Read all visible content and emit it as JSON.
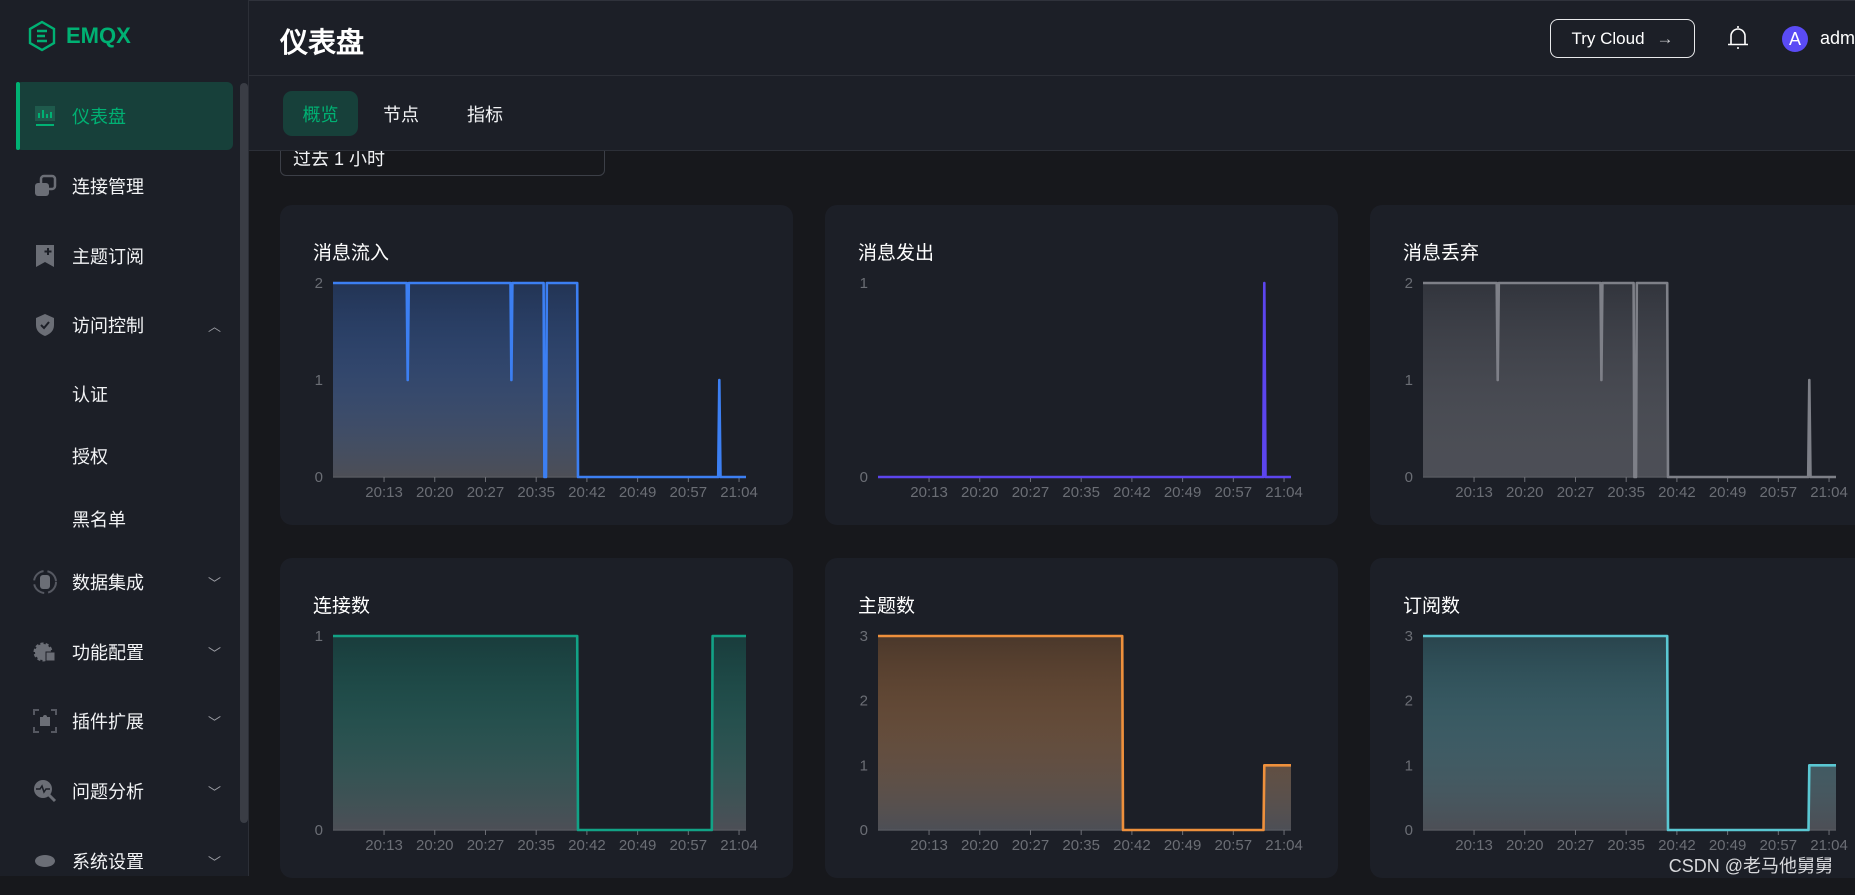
{
  "brand": {
    "name": "EMQX",
    "color": "#00b173"
  },
  "sidebar": {
    "items": [
      {
        "label": "仪表盘",
        "icon": "dashboard-icon",
        "active": true
      },
      {
        "label": "连接管理",
        "icon": "connections-icon"
      },
      {
        "label": "主题订阅",
        "icon": "bookmark-plus-icon"
      },
      {
        "label": "访问控制",
        "icon": "shield-icon",
        "expanded": true,
        "children": [
          {
            "label": "认证"
          },
          {
            "label": "授权"
          },
          {
            "label": "黑名单"
          }
        ]
      },
      {
        "label": "数据集成",
        "icon": "database-icon",
        "expanded": false
      },
      {
        "label": "功能配置",
        "icon": "gear-icon",
        "expanded": false
      },
      {
        "label": "插件扩展",
        "icon": "puzzle-icon",
        "expanded": false
      },
      {
        "label": "问题分析",
        "icon": "diagnose-icon",
        "expanded": false
      },
      {
        "label": "系统设置",
        "icon": "settings-icon",
        "expanded": false
      }
    ]
  },
  "header": {
    "title": "仪表盘",
    "try_cloud": "Try Cloud",
    "avatar_letter": "A",
    "user": "admin"
  },
  "tabs": [
    {
      "label": "概览",
      "active": true
    },
    {
      "label": "节点"
    },
    {
      "label": "指标"
    }
  ],
  "time_range": {
    "value": "过去 1 小时"
  },
  "watermark": "CSDN @老马他舅舅",
  "chart_data": [
    {
      "type": "line",
      "title": "消息流入",
      "color": "#3c7ff2",
      "ylim": [
        0,
        2
      ],
      "yticks": [
        0,
        1,
        2
      ],
      "xticks": [
        "20:13",
        "20:20",
        "20:27",
        "20:35",
        "20:42",
        "20:49",
        "20:57",
        "21:04"
      ],
      "xlim": [
        "20:05:40",
        "21:05:00"
      ],
      "points": [
        [
          "20:05:40",
          2
        ],
        [
          "20:16:15",
          2
        ],
        [
          "20:16:24",
          1
        ],
        [
          "20:16:33",
          2
        ],
        [
          "20:31:10",
          2
        ],
        [
          "20:31:18",
          1
        ],
        [
          "20:31:26",
          2
        ],
        [
          "20:35:55",
          2
        ],
        [
          "20:36:02",
          0
        ],
        [
          "20:36:16",
          0
        ],
        [
          "20:36:23",
          2
        ],
        [
          "20:40:45",
          2
        ],
        [
          "20:40:52",
          0
        ],
        [
          "21:01:00",
          0
        ],
        [
          "21:01:10",
          1
        ],
        [
          "21:01:20",
          0
        ],
        [
          "21:05:00",
          0
        ]
      ]
    },
    {
      "type": "line",
      "title": "消息发出",
      "color": "#5c45ee",
      "ylim": [
        0,
        1
      ],
      "yticks": [
        0,
        1
      ],
      "xticks": [
        "20:13",
        "20:20",
        "20:27",
        "20:35",
        "20:42",
        "20:49",
        "20:57",
        "21:04"
      ],
      "xlim": [
        "20:05:40",
        "21:05:00"
      ],
      "points": [
        [
          "20:05:40",
          0
        ],
        [
          "21:01:00",
          0
        ],
        [
          "21:01:10",
          1
        ],
        [
          "21:01:20",
          0
        ],
        [
          "21:05:00",
          0
        ]
      ]
    },
    {
      "type": "line",
      "title": "消息丢弃",
      "color": "#7e8088",
      "ylim": [
        0,
        2
      ],
      "yticks": [
        0,
        1,
        2
      ],
      "xticks": [
        "20:13",
        "20:20",
        "20:27",
        "20:35",
        "20:42",
        "20:49",
        "20:57",
        "21:04"
      ],
      "xlim": [
        "20:05:40",
        "21:05:00"
      ],
      "points": [
        [
          "20:05:40",
          2
        ],
        [
          "20:16:15",
          2
        ],
        [
          "20:16:24",
          1
        ],
        [
          "20:16:33",
          2
        ],
        [
          "20:31:10",
          2
        ],
        [
          "20:31:18",
          1
        ],
        [
          "20:31:26",
          2
        ],
        [
          "20:35:55",
          2
        ],
        [
          "20:36:02",
          0
        ],
        [
          "20:36:16",
          0
        ],
        [
          "20:36:23",
          2
        ],
        [
          "20:40:45",
          2
        ],
        [
          "20:40:52",
          0
        ],
        [
          "21:01:00",
          0
        ],
        [
          "21:01:10",
          1
        ],
        [
          "21:01:20",
          0
        ],
        [
          "21:05:00",
          0
        ]
      ]
    },
    {
      "type": "line",
      "title": "连接数",
      "color": "#12a286",
      "ylim": [
        0,
        1
      ],
      "yticks": [
        0,
        1
      ],
      "xticks": [
        "20:13",
        "20:20",
        "20:27",
        "20:35",
        "20:42",
        "20:49",
        "20:57",
        "21:04"
      ],
      "xlim": [
        "20:05:40",
        "21:05:00"
      ],
      "points": [
        [
          "20:05:40",
          1
        ],
        [
          "20:40:45",
          1
        ],
        [
          "20:40:52",
          0
        ],
        [
          "21:00:05",
          0
        ],
        [
          "21:00:12",
          1
        ],
        [
          "21:05:00",
          1
        ]
      ]
    },
    {
      "type": "line",
      "title": "主题数",
      "color": "#ee903c",
      "ylim": [
        0,
        3
      ],
      "yticks": [
        0,
        1,
        2,
        3
      ],
      "xticks": [
        "20:13",
        "20:20",
        "20:27",
        "20:35",
        "20:42",
        "20:49",
        "20:57",
        "21:04"
      ],
      "xlim": [
        "20:05:40",
        "21:05:00"
      ],
      "points": [
        [
          "20:05:40",
          3
        ],
        [
          "20:40:45",
          3
        ],
        [
          "20:40:52",
          0
        ],
        [
          "21:01:03",
          0
        ],
        [
          "21:01:10",
          1
        ],
        [
          "21:05:00",
          1
        ]
      ]
    },
    {
      "type": "line",
      "title": "订阅数",
      "color": "#5ac7d2",
      "ylim": [
        0,
        3
      ],
      "yticks": [
        0,
        1,
        2,
        3
      ],
      "xticks": [
        "20:13",
        "20:20",
        "20:27",
        "20:35",
        "20:42",
        "20:49",
        "20:57",
        "21:04"
      ],
      "xlim": [
        "20:05:40",
        "21:05:00"
      ],
      "points": [
        [
          "20:05:40",
          3
        ],
        [
          "20:40:45",
          3
        ],
        [
          "20:40:52",
          0
        ],
        [
          "21:01:03",
          0
        ],
        [
          "21:01:10",
          1
        ],
        [
          "21:05:00",
          1
        ]
      ]
    }
  ]
}
